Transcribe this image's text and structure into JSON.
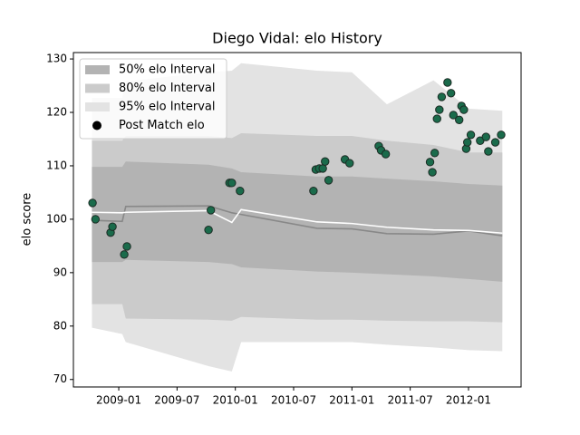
{
  "chart_data": {
    "type": "band",
    "title": "Diego Vidal: elo History",
    "ylabel": "elo score",
    "xlim": [
      2008.611,
      2012.451
    ],
    "ylim": [
      68.6,
      131.2
    ],
    "xticks": [
      {
        "value": 2009.0,
        "label": "2009-01"
      },
      {
        "value": 2009.5,
        "label": "2009-07"
      },
      {
        "value": 2010.0,
        "label": "2010-01"
      },
      {
        "value": 2010.5,
        "label": "2010-07"
      },
      {
        "value": 2011.0,
        "label": "2011-01"
      },
      {
        "value": 2011.5,
        "label": "2011-07"
      },
      {
        "value": 2012.0,
        "label": "2012-01"
      }
    ],
    "yticks": [
      70,
      80,
      90,
      100,
      110,
      120,
      130
    ],
    "legend": "upper left",
    "x": [
      2008.77,
      2009.03,
      2009.06,
      2009.77,
      2009.97,
      2010.05,
      2010.7,
      2011.0,
      2011.3,
      2011.7,
      2012.0,
      2012.29
    ],
    "bands": [
      {
        "name": "50% elo Interval",
        "color": "#b3b3b3",
        "lower": [
          92,
          92,
          92.4,
          92,
          91.6,
          91,
          90.2,
          90,
          89.7,
          89.3,
          88.8,
          88.3
        ],
        "upper": [
          109.8,
          109.8,
          110.8,
          110.2,
          109.5,
          108.8,
          108,
          108,
          107.6,
          107.1,
          106.6,
          106.3
        ]
      },
      {
        "name": "80% elo Interval",
        "color": "#cbcbcb",
        "lower": [
          84.1,
          84.1,
          81.4,
          81.2,
          81,
          81.7,
          81.2,
          81.2,
          81,
          80.9,
          80.9,
          80.7
        ],
        "upper": [
          114.7,
          114.7,
          115.6,
          115.6,
          115.2,
          116.1,
          115.6,
          115.6,
          114.7,
          113.9,
          112.5,
          112.5
        ]
      },
      {
        "name": "95% elo Interval",
        "color": "#e3e3e3",
        "lower": [
          79.7,
          78.5,
          77,
          72.5,
          71.5,
          77,
          77,
          77,
          76.5,
          76,
          75.5,
          75.3
        ],
        "upper": [
          122.7,
          122.7,
          125.8,
          127.5,
          127.8,
          129.2,
          127.8,
          127.5,
          121.5,
          126,
          120.7,
          120.3
        ]
      }
    ],
    "lines": [
      {
        "color": "#888888",
        "values": [
          99.8,
          99.6,
          102.4,
          102.5,
          101.2,
          100.9,
          98.3,
          98.2,
          97.3,
          97.2,
          97.8,
          96.9
        ]
      },
      {
        "color": "#ffffff",
        "values": [
          101.3,
          101.2,
          101.3,
          101.6,
          99.4,
          101.8,
          99.5,
          99.2,
          98.5,
          98.0,
          97.9,
          97.4
        ]
      }
    ],
    "points": {
      "name": "Post Match elo",
      "color": "#1a6b4b",
      "x": [
        2008.775,
        2008.8,
        2008.93,
        2008.946,
        2009.047,
        2009.07,
        2009.77,
        2009.79,
        2009.95,
        2009.97,
        2010.04,
        2010.67,
        2010.69,
        2010.72,
        2010.75,
        2010.77,
        2010.8,
        2010.94,
        2010.98,
        2011.23,
        2011.25,
        2011.29,
        2011.67,
        2011.69,
        2011.71,
        2011.73,
        2011.75,
        2011.77,
        2011.82,
        2011.85,
        2011.87,
        2011.92,
        2011.94,
        2011.96,
        2011.98,
        2011.99,
        2012.02,
        2012.1,
        2012.15,
        2012.17,
        2012.23,
        2012.28
      ],
      "y": [
        103.05,
        100.0,
        97.5,
        98.6,
        93.4,
        94.9,
        98.0,
        101.7,
        106.8,
        106.8,
        105.3,
        105.3,
        109.3,
        109.5,
        109.5,
        110.8,
        107.3,
        111.2,
        110.5,
        113.7,
        112.9,
        112.2,
        110.7,
        108.8,
        112.4,
        118.8,
        120.5,
        122.9,
        125.6,
        123.6,
        119.5,
        118.6,
        121.2,
        120.5,
        113.2,
        114.4,
        115.8,
        114.7,
        115.4,
        112.7,
        114.4,
        115.8
      ]
    }
  }
}
